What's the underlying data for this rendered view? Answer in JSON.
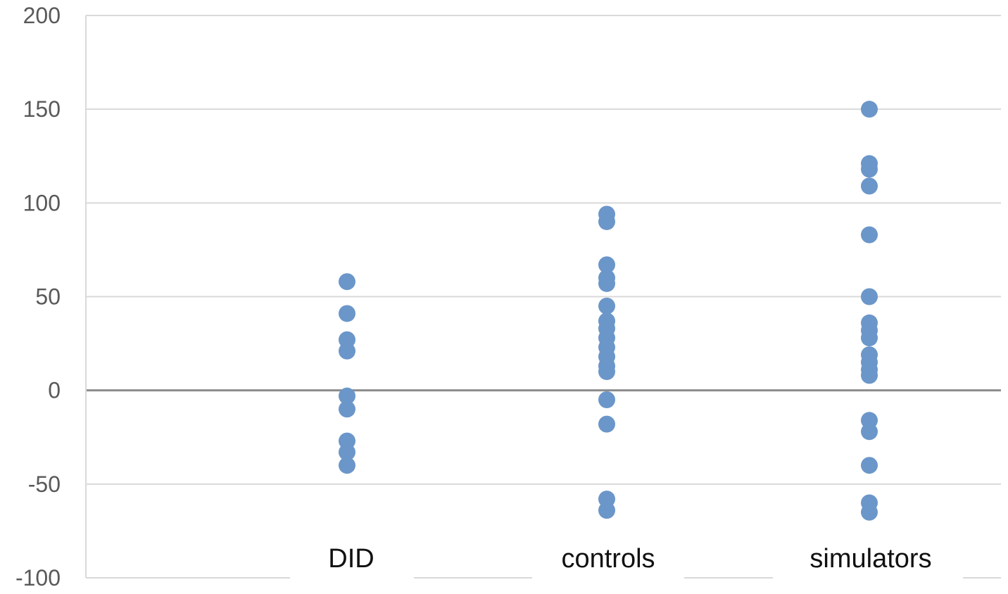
{
  "chart_data": {
    "type": "scatter",
    "title": "",
    "xlabel": "",
    "ylabel": "",
    "ylim": [
      -100,
      200
    ],
    "yticks": [
      200,
      150,
      100,
      50,
      0,
      -50,
      -100
    ],
    "grid": true,
    "legend": "none",
    "categories": [
      "DID",
      "controls",
      "simulators"
    ],
    "series": [
      {
        "category": "DID",
        "values": [
          58,
          41,
          27,
          21,
          -3,
          -10,
          -27,
          -33,
          -40
        ]
      },
      {
        "category": "controls",
        "values": [
          94,
          90,
          67,
          60,
          57,
          45,
          37,
          33,
          28,
          23,
          18,
          13,
          10,
          -5,
          -18,
          -58,
          -64
        ]
      },
      {
        "category": "simulators",
        "values": [
          150,
          121,
          118,
          109,
          83,
          50,
          36,
          32,
          28,
          19,
          15,
          11,
          8,
          -16,
          -22,
          -40,
          -60,
          -65
        ]
      }
    ],
    "colors": {
      "marker": "#6b96c9",
      "grid": "#d9d9d9",
      "axis": "#8c8c8c",
      "zero": "#8c8c8c"
    }
  }
}
